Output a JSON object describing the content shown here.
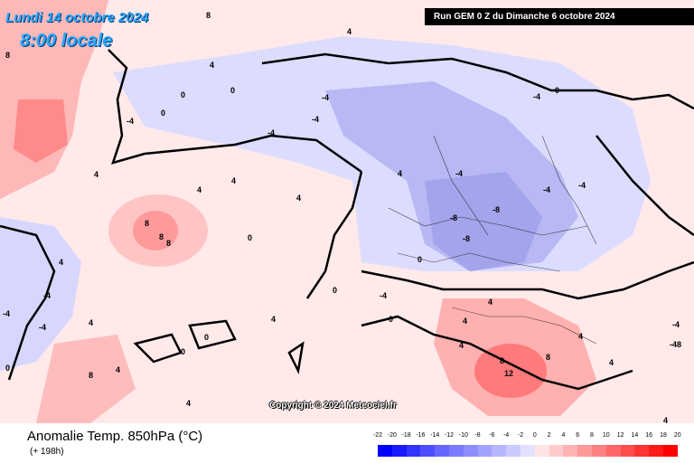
{
  "header": {
    "date_label": "Lundi 14 octobre 2024",
    "time_label": "8:00 locale",
    "run_label": "Run GEM 0 Z du Dimanche 6 octobre 2024"
  },
  "map": {
    "copyright": "Copyright © 2024 Meteociel.fr",
    "contour_labels": [
      {
        "text": "4"
      },
      {
        "text": "4"
      },
      {
        "text": "8"
      },
      {
        "text": "8"
      },
      {
        "text": "4"
      },
      {
        "text": "0"
      },
      {
        "text": "0"
      },
      {
        "text": "-4"
      },
      {
        "text": "-4"
      },
      {
        "text": "-4"
      },
      {
        "text": "-4"
      },
      {
        "text": "0"
      },
      {
        "text": "0"
      },
      {
        "text": "-4"
      },
      {
        "text": "4"
      },
      {
        "text": "4"
      },
      {
        "text": "4"
      },
      {
        "text": "4"
      },
      {
        "text": "8"
      },
      {
        "text": "8"
      },
      {
        "text": "8"
      },
      {
        "text": "0"
      },
      {
        "text": "4"
      },
      {
        "text": "-4"
      },
      {
        "text": "-8"
      },
      {
        "text": "-8"
      },
      {
        "text": "-8"
      },
      {
        "text": "-4"
      },
      {
        "text": "-4"
      },
      {
        "text": "0"
      },
      {
        "text": "0"
      },
      {
        "text": "0"
      },
      {
        "text": "4"
      },
      {
        "text": "4"
      },
      {
        "text": "4"
      },
      {
        "text": "8"
      },
      {
        "text": "8"
      },
      {
        "text": "12"
      },
      {
        "text": "4"
      },
      {
        "text": "-4"
      },
      {
        "text": "-4"
      },
      {
        "text": "-4"
      },
      {
        "text": "4"
      },
      {
        "text": "0"
      },
      {
        "text": "4"
      },
      {
        "text": "-4"
      },
      {
        "text": "4"
      },
      {
        "text": "0"
      },
      {
        "text": "0"
      },
      {
        "text": "4"
      },
      {
        "text": "-4"
      },
      {
        "text": "8"
      },
      {
        "text": "4"
      },
      {
        "text": "-48"
      },
      {
        "text": "4"
      },
      {
        "text": "4"
      }
    ]
  },
  "footer": {
    "title": "Anomalie Temp. 850hPa (°C)",
    "subtitle": "(+ 198h)"
  },
  "legend": {
    "labels": [
      "-22",
      "-20",
      "-18",
      "-16",
      "-14",
      "-12",
      "-10",
      "-8",
      "-6",
      "-4",
      "-2",
      "0",
      "2",
      "4",
      "6",
      "8",
      "10",
      "12",
      "14",
      "16",
      "18",
      "20"
    ],
    "colors": [
      "#0000ff",
      "#1a1aff",
      "#3333ff",
      "#4d4dff",
      "#6666ff",
      "#7a7aff",
      "#8e8eff",
      "#a2a2ff",
      "#b6b6ff",
      "#cacaff",
      "#e2e2ff",
      "#ffe4e4",
      "#ffcccc",
      "#ffb3b3",
      "#ff9999",
      "#ff8080",
      "#ff6666",
      "#ff4d4d",
      "#ff3333",
      "#ff1a1a",
      "#ff0000"
    ]
  }
}
